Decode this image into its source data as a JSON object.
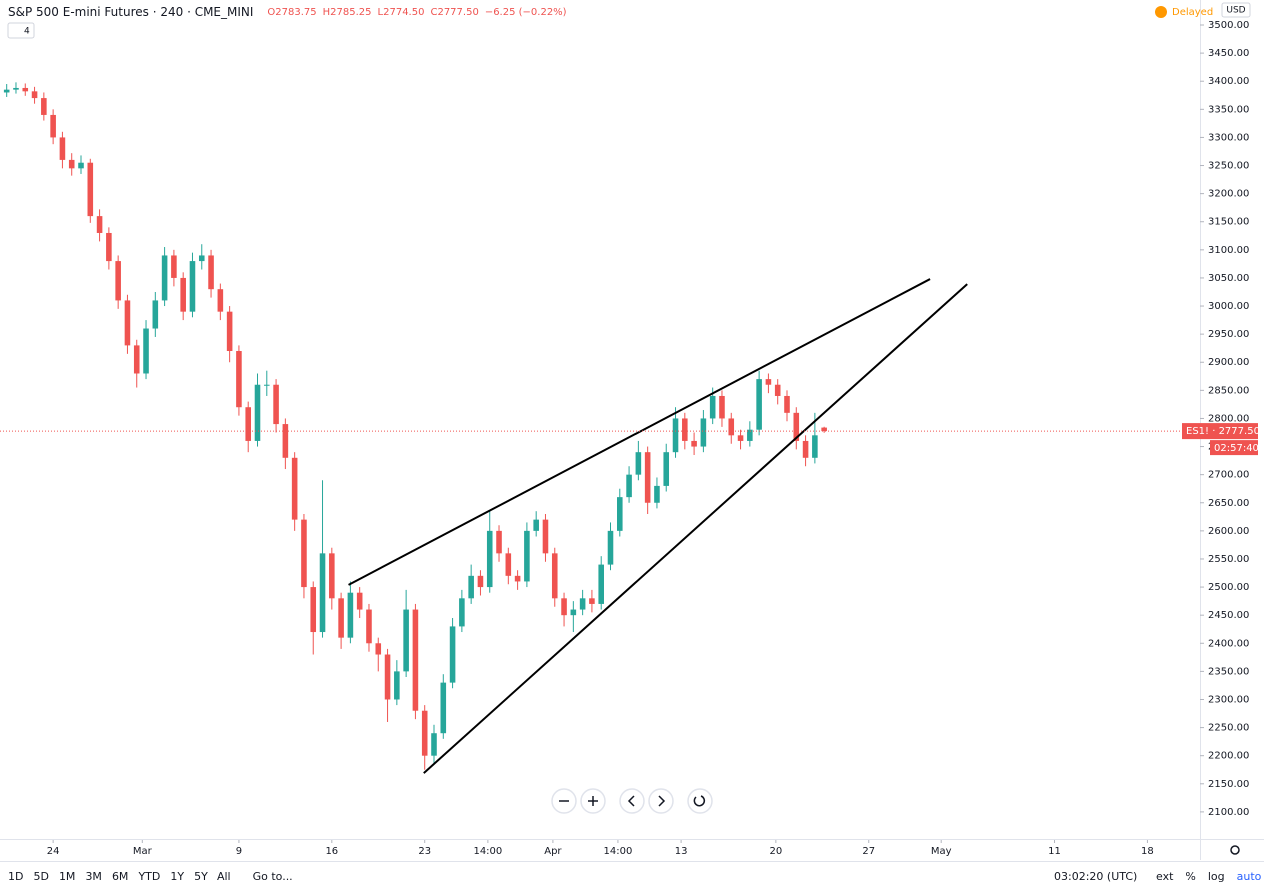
{
  "header": {
    "title": "S&P 500 E-mini Futures · 240 · CME_MINI",
    "ohlc": [
      "O2783.75",
      "H2785.25",
      "L2774.50",
      "C2777.50",
      "−6.25 (−0.22%)"
    ],
    "legend_count": "4",
    "status": "Delayed",
    "currency": "USD"
  },
  "toolbar": {
    "ranges": [
      "1D",
      "5D",
      "1M",
      "3M",
      "6M",
      "YTD",
      "1Y",
      "5Y",
      "All"
    ],
    "goto": "Go to...",
    "time": "03:02:20 (UTC)",
    "options": [
      "ext",
      "%",
      "log",
      "auto"
    ]
  },
  "chart_data": {
    "type": "candlestick",
    "up_color": "#26a69a",
    "down_color": "#ef5350",
    "x": [
      -2.5,
      -2,
      -1.5,
      -1,
      -0.5,
      0,
      0.5,
      1,
      1.5,
      2,
      2.5,
      3,
      3.5,
      4,
      4.5,
      5,
      5.5,
      6,
      6.5,
      7,
      7.5,
      8,
      8.5,
      9,
      9.5,
      10,
      10.5,
      11,
      11.5,
      12,
      12.5,
      13,
      13.5,
      14,
      14.5,
      15,
      15.5,
      16,
      16.5,
      17,
      17.5,
      18,
      18.5,
      19,
      19.5,
      20,
      20.5,
      21,
      21.5,
      22,
      22.5,
      23,
      23.5,
      24,
      24.5,
      25,
      25.5,
      26,
      26.5,
      27,
      27.5,
      28,
      28.5,
      29,
      29.5,
      30,
      30.5,
      31,
      31.5,
      32,
      32.5,
      33,
      33.5,
      34,
      34.5,
      35,
      35.5,
      36,
      36.5,
      37,
      37.5,
      38,
      38.5,
      39,
      39.5,
      40,
      40.5,
      41,
      41.5
    ],
    "open": [
      3380,
      3385,
      3388,
      3382,
      3370,
      3340,
      3300,
      3260,
      3245,
      3255,
      3160,
      3130,
      3080,
      3010,
      2930,
      2880,
      2960,
      3010,
      3090,
      3050,
      2990,
      3080,
      3090,
      3030,
      2990,
      2920,
      2820,
      2760,
      2860,
      2860,
      2790,
      2730,
      2620,
      2500,
      2420,
      2560,
      2480,
      2410,
      2490,
      2460,
      2400,
      2380,
      2300,
      2350,
      2460,
      2280,
      2200,
      2240,
      2330,
      2430,
      2480,
      2520,
      2500,
      2600,
      2560,
      2520,
      2510,
      2600,
      2620,
      2560,
      2480,
      2450,
      2460,
      2480,
      2470,
      2540,
      2600,
      2660,
      2700,
      2740,
      2650,
      2680,
      2740,
      2800,
      2760,
      2750,
      2800,
      2840,
      2800,
      2770,
      2760,
      2780,
      2870,
      2860,
      2840,
      2810,
      2760,
      2730,
      2783.75
    ],
    "high": [
      3395,
      3398,
      3396,
      3390,
      3380,
      3350,
      3310,
      3272,
      3268,
      3262,
      3172,
      3140,
      3090,
      3020,
      2940,
      2975,
      3025,
      3105,
      3100,
      3060,
      3095,
      3110,
      3100,
      3040,
      3000,
      2930,
      2830,
      2880,
      2885,
      2870,
      2800,
      2740,
      2630,
      2510,
      2690,
      2570,
      2490,
      2510,
      2500,
      2470,
      2410,
      2390,
      2370,
      2495,
      2470,
      2290,
      2255,
      2345,
      2445,
      2495,
      2540,
      2530,
      2635,
      2610,
      2570,
      2530,
      2615,
      2635,
      2630,
      2570,
      2490,
      2475,
      2495,
      2495,
      2555,
      2615,
      2675,
      2715,
      2760,
      2750,
      2695,
      2755,
      2820,
      2810,
      2775,
      2815,
      2855,
      2850,
      2810,
      2780,
      2795,
      2885,
      2880,
      2870,
      2850,
      2820,
      2770,
      2810,
      2785.25
    ],
    "low": [
      3372,
      3378,
      3374,
      3360,
      3330,
      3288,
      3245,
      3232,
      3235,
      3148,
      3115,
      3065,
      2995,
      2915,
      2855,
      2870,
      2945,
      3000,
      3035,
      2975,
      2980,
      3065,
      3015,
      2975,
      2900,
      2805,
      2740,
      2750,
      2840,
      2775,
      2710,
      2600,
      2480,
      2380,
      2410,
      2460,
      2390,
      2400,
      2445,
      2385,
      2350,
      2260,
      2290,
      2340,
      2265,
      2175,
      2185,
      2230,
      2320,
      2420,
      2470,
      2485,
      2490,
      2545,
      2505,
      2495,
      2500,
      2590,
      2545,
      2465,
      2430,
      2420,
      2450,
      2455,
      2460,
      2530,
      2590,
      2650,
      2690,
      2630,
      2640,
      2670,
      2730,
      2745,
      2735,
      2740,
      2790,
      2785,
      2755,
      2745,
      2750,
      2770,
      2845,
      2825,
      2795,
      2745,
      2715,
      2720,
      2774.5
    ],
    "close": [
      3385,
      3388,
      3382,
      3370,
      3340,
      3300,
      3260,
      3245,
      3255,
      3160,
      3130,
      3080,
      3010,
      2930,
      2880,
      2960,
      3010,
      3090,
      3050,
      2990,
      3080,
      3090,
      3030,
      2990,
      2920,
      2820,
      2760,
      2860,
      2860,
      2790,
      2730,
      2620,
      2500,
      2420,
      2560,
      2480,
      2410,
      2490,
      2460,
      2400,
      2380,
      2300,
      2350,
      2460,
      2280,
      2200,
      2240,
      2330,
      2430,
      2480,
      2520,
      2500,
      2600,
      2560,
      2520,
      2510,
      2600,
      2620,
      2560,
      2480,
      2450,
      2460,
      2480,
      2470,
      2540,
      2600,
      2660,
      2700,
      2740,
      2650,
      2680,
      2740,
      2800,
      2760,
      2750,
      2800,
      2840,
      2800,
      2770,
      2760,
      2780,
      2870,
      2860,
      2840,
      2810,
      2760,
      2730,
      2770,
      2777.5
    ],
    "xlim": [
      -2.86,
      61.73
    ],
    "xticks": [
      {
        "value": 0,
        "label": "24"
      },
      {
        "value": 4.8,
        "label": "Mar"
      },
      {
        "value": 10,
        "label": "9"
      },
      {
        "value": 15,
        "label": "16"
      },
      {
        "value": 20,
        "label": "23"
      },
      {
        "value": 23.4,
        "label": "14:00"
      },
      {
        "value": 26.9,
        "label": "Apr"
      },
      {
        "value": 30.4,
        "label": "14:00"
      },
      {
        "value": 33.8,
        "label": "13"
      },
      {
        "value": 38.9,
        "label": "20"
      },
      {
        "value": 43.9,
        "label": "27"
      },
      {
        "value": 47.8,
        "label": "May"
      },
      {
        "value": 53.9,
        "label": "11"
      },
      {
        "value": 58.9,
        "label": "18"
      }
    ],
    "ylim": [
      2050,
      3544.5
    ],
    "yticks": [
      {
        "value": 2100,
        "label": "2100.00"
      },
      {
        "value": 2150,
        "label": "2150.00"
      },
      {
        "value": 2200,
        "label": "2200.00"
      },
      {
        "value": 2250,
        "label": "2250.00"
      },
      {
        "value": 2300,
        "label": "2300.00"
      },
      {
        "value": 2350,
        "label": "2350.00"
      },
      {
        "value": 2400,
        "label": "2400.00"
      },
      {
        "value": 2450,
        "label": "2450.00"
      },
      {
        "value": 2500,
        "label": "2500.00"
      },
      {
        "value": 2550,
        "label": "2550.00"
      },
      {
        "value": 2600,
        "label": "2600.00"
      },
      {
        "value": 2650,
        "label": "2650.00"
      },
      {
        "value": 2700,
        "label": "2700.00"
      },
      {
        "value": 2750,
        "label": "2750.00"
      },
      {
        "value": 2800,
        "label": "2800.00"
      },
      {
        "value": 2850,
        "label": "2850.00"
      },
      {
        "value": 2900,
        "label": "2900.00"
      },
      {
        "value": 2950,
        "label": "2950.00"
      },
      {
        "value": 3000,
        "label": "3000.00"
      },
      {
        "value": 3050,
        "label": "3050.00"
      },
      {
        "value": 3100,
        "label": "3100.00"
      },
      {
        "value": 3150,
        "label": "3150.00"
      },
      {
        "value": 3200,
        "label": "3200.00"
      },
      {
        "value": 3250,
        "label": "3250.00"
      },
      {
        "value": 3300,
        "label": "3300.00"
      },
      {
        "value": 3350,
        "label": "3350.00"
      },
      {
        "value": 3400,
        "label": "3400.00"
      },
      {
        "value": 3450,
        "label": "3450.00"
      },
      {
        "value": 3500,
        "label": "3500.00"
      }
    ],
    "trend_lines": [
      {
        "x": [
          15.9,
          47.2
        ],
        "y": [
          2504,
          3048
        ]
      },
      {
        "x": [
          19.95,
          49.2
        ],
        "y": [
          2169,
          3039
        ]
      }
    ],
    "price_line": {
      "value": 2777.5,
      "label": "ES1! · 2777.50",
      "countdown": "02:57:40",
      "color": "#ef5350"
    }
  }
}
